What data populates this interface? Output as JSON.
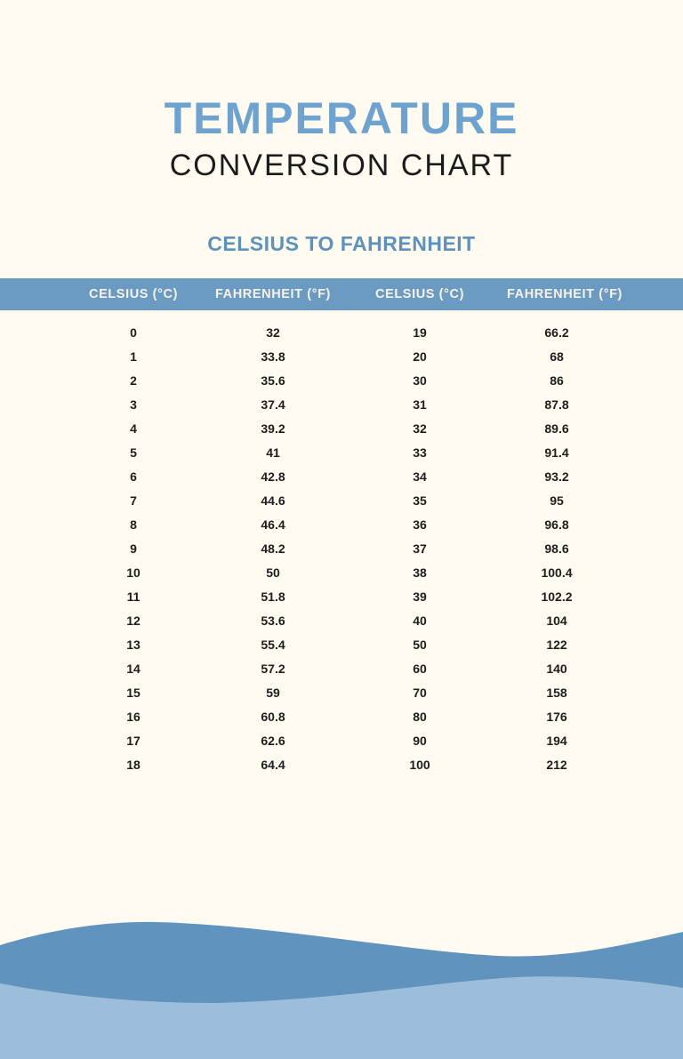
{
  "page": {
    "title": "TEMPERATURE",
    "subtitle": "CONVERSION CHART",
    "section_heading": "CELSIUS TO FAHRENHEIT"
  },
  "table": {
    "headers": [
      "CELSIUS (°C)",
      "FAHRENHEIT (°F)",
      "CELSIUS (°C)",
      "FAHRENHEIT (°F)"
    ],
    "rows": [
      [
        "0",
        "32",
        "19",
        "66.2"
      ],
      [
        "1",
        "33.8",
        "20",
        "68"
      ],
      [
        "2",
        "35.6",
        "30",
        "86"
      ],
      [
        "3",
        "37.4",
        "31",
        "87.8"
      ],
      [
        "4",
        "39.2",
        "32",
        "89.6"
      ],
      [
        "5",
        "41",
        "33",
        "91.4"
      ],
      [
        "6",
        "42.8",
        "34",
        "93.2"
      ],
      [
        "7",
        "44.6",
        "35",
        "95"
      ],
      [
        "8",
        "46.4",
        "36",
        "96.8"
      ],
      [
        "9",
        "48.2",
        "37",
        "98.6"
      ],
      [
        "10",
        "50",
        "38",
        "100.4"
      ],
      [
        "11",
        "51.8",
        "39",
        "102.2"
      ],
      [
        "12",
        "53.6",
        "40",
        "104"
      ],
      [
        "13",
        "55.4",
        "50",
        "122"
      ],
      [
        "14",
        "57.2",
        "60",
        "140"
      ],
      [
        "15",
        "59",
        "70",
        "158"
      ],
      [
        "16",
        "60.8",
        "80",
        "176"
      ],
      [
        "17",
        "62.6",
        "90",
        "194"
      ],
      [
        "18",
        "64.4",
        "100",
        "212"
      ]
    ]
  },
  "colors": {
    "background": "#fffbf0",
    "title_blue": "#6fa3cf",
    "heading_dark": "#1b1b1b",
    "section_blue": "#5d92bc",
    "header_bar_blue": "#6b9ac2",
    "header_bar_text": "#f7f3e7",
    "cell_text": "#1d1d1d",
    "wave_dark": "#6093bd",
    "wave_light": "#9dbedb"
  }
}
